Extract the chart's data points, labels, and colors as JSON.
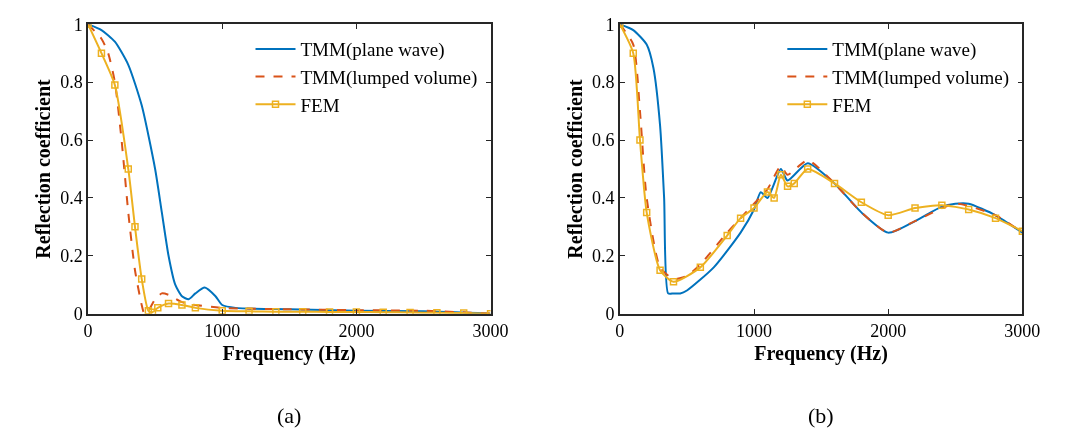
{
  "chart_data": [
    {
      "type": "line",
      "xlabel": "Frequency (Hz)",
      "ylabel": "Reflection coefficient",
      "annotations": [
        "(a)"
      ],
      "xlim": [
        0,
        3000
      ],
      "xticks": [
        0,
        1000,
        2000,
        3000
      ],
      "ylim": [
        0,
        1
      ],
      "yticks": [
        0,
        0.2,
        0.4,
        0.6,
        0.8,
        1
      ],
      "legend": "top right",
      "series": [
        {
          "name": "TMM(plane wave)",
          "color": "#0072bd",
          "line_style": "solid",
          "marker": "none",
          "x": [
            0,
            100,
            200,
            300,
            400,
            500,
            550,
            600,
            650,
            700,
            750,
            800,
            870,
            950,
            1000,
            1100,
            1500,
            2000,
            2500,
            3000
          ],
          "values": [
            1,
            0.98,
            0.94,
            0.86,
            0.72,
            0.5,
            0.35,
            0.2,
            0.1,
            0.06,
            0.05,
            0.07,
            0.09,
            0.06,
            0.03,
            0.02,
            0.015,
            0.01,
            0.008,
            0
          ]
        },
        {
          "name": "TMM(lumped volume)",
          "color": "#d95319",
          "line_style": "dashed",
          "marker": "none",
          "x": [
            0,
            100,
            150,
            200,
            250,
            300,
            350,
            400,
            420,
            450,
            500,
            550,
            600,
            700,
            800,
            1000,
            1500,
            2000,
            2500,
            3000
          ],
          "values": [
            1,
            0.95,
            0.9,
            0.8,
            0.6,
            0.35,
            0.15,
            0.03,
            0,
            0.01,
            0.05,
            0.07,
            0.065,
            0.04,
            0.03,
            0.02,
            0.015,
            0.012,
            0.01,
            0
          ]
        },
        {
          "name": "FEM",
          "color": "#edb120",
          "line_style": "solid",
          "marker": "square",
          "x": [
            0,
            100,
            200,
            300,
            350,
            400,
            450,
            480,
            520,
            600,
            700,
            800,
            1000,
            1200,
            1400,
            1600,
            1800,
            2000,
            2200,
            2400,
            2600,
            2800,
            3000
          ],
          "values": [
            1,
            0.9,
            0.79,
            0.5,
            0.3,
            0.12,
            0.01,
            0.005,
            0.02,
            0.035,
            0.03,
            0.02,
            0.01,
            0.008,
            0.007,
            0.007,
            0.006,
            0.006,
            0.005,
            0.004,
            0.003,
            0.002,
            0
          ]
        }
      ]
    },
    {
      "type": "line",
      "xlabel": "Frequency (Hz)",
      "ylabel": "Reflection coefficient",
      "annotations": [
        "(b)"
      ],
      "xlim": [
        0,
        3000
      ],
      "xticks": [
        0,
        1000,
        2000,
        3000
      ],
      "ylim": [
        0,
        1
      ],
      "yticks": [
        0,
        0.2,
        0.4,
        0.6,
        0.8,
        1
      ],
      "legend": "top right",
      "series": [
        {
          "name": "TMM(plane wave)",
          "color": "#0072bd",
          "line_style": "solid",
          "marker": "none",
          "x": [
            0,
            100,
            200,
            250,
            300,
            330,
            360,
            400,
            450,
            500,
            700,
            900,
            1000,
            1050,
            1100,
            1200,
            1250,
            1400,
            1600,
            1800,
            2000,
            2200,
            2400,
            2500,
            2600,
            2800,
            3000
          ],
          "values": [
            1,
            0.98,
            0.93,
            0.85,
            0.65,
            0.4,
            0.07,
            0.07,
            0.07,
            0.08,
            0.16,
            0.28,
            0.36,
            0.42,
            0.4,
            0.5,
            0.46,
            0.52,
            0.45,
            0.35,
            0.28,
            0.32,
            0.37,
            0.38,
            0.38,
            0.34,
            0.28
          ]
        },
        {
          "name": "TMM(lumped volume)",
          "color": "#d95319",
          "line_style": "dashed",
          "marker": "none",
          "x": [
            0,
            100,
            150,
            200,
            300,
            400,
            500,
            600,
            800,
            1000,
            1100,
            1200,
            1250,
            1400,
            1600,
            1800,
            2000,
            2200,
            2500,
            2800,
            3000
          ],
          "values": [
            1,
            0.93,
            0.7,
            0.4,
            0.16,
            0.12,
            0.13,
            0.17,
            0.28,
            0.38,
            0.43,
            0.51,
            0.48,
            0.53,
            0.45,
            0.35,
            0.28,
            0.32,
            0.38,
            0.34,
            0.28
          ]
        },
        {
          "name": "FEM",
          "color": "#edb120",
          "line_style": "solid",
          "marker": "square",
          "x": [
            0,
            100,
            150,
            200,
            300,
            400,
            600,
            800,
            900,
            1000,
            1100,
            1150,
            1200,
            1250,
            1300,
            1400,
            1600,
            1800,
            2000,
            2200,
            2400,
            2600,
            2800,
            3000
          ],
          "values": [
            1,
            0.9,
            0.6,
            0.35,
            0.15,
            0.11,
            0.16,
            0.27,
            0.33,
            0.365,
            0.42,
            0.4,
            0.48,
            0.44,
            0.45,
            0.5,
            0.45,
            0.385,
            0.34,
            0.365,
            0.375,
            0.36,
            0.33,
            0.285
          ]
        }
      ]
    }
  ]
}
